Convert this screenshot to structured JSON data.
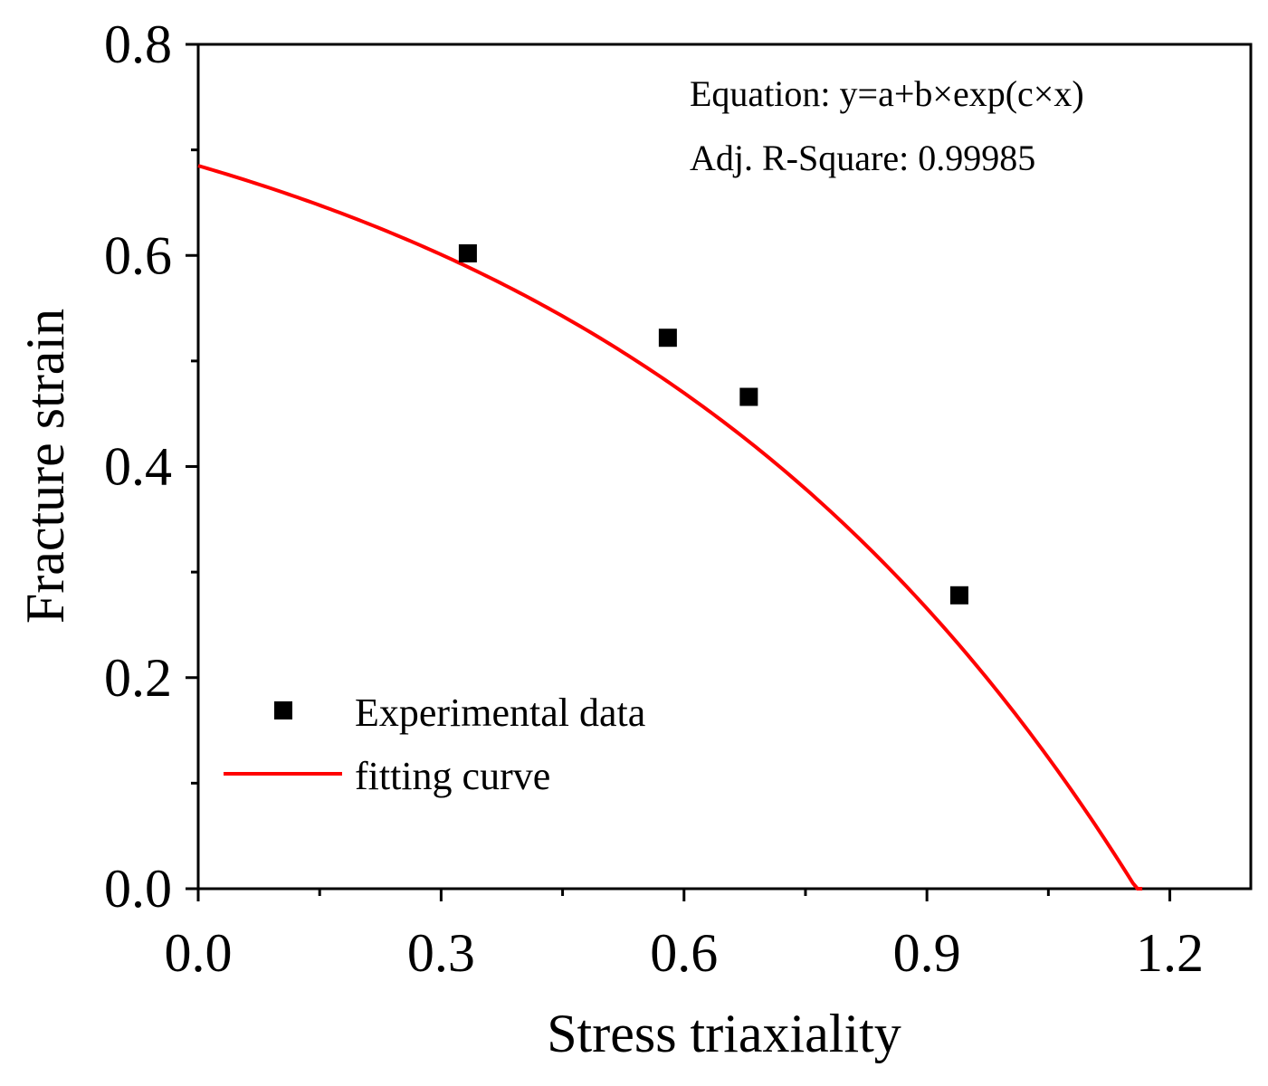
{
  "chart_data": {
    "type": "scatter",
    "xlabel": "Stress triaxiality",
    "ylabel": "Fracture strain",
    "xlim": [
      0.0,
      1.3
    ],
    "ylim": [
      0.0,
      0.8
    ],
    "x_ticks": [
      "0.0",
      "0.3",
      "0.6",
      "0.9",
      "1.2"
    ],
    "y_ticks": [
      "0.0",
      "0.2",
      "0.4",
      "0.6",
      "0.8"
    ],
    "x_tick_values": [
      0.0,
      0.3,
      0.6,
      0.9,
      1.2
    ],
    "y_tick_values": [
      0.0,
      0.2,
      0.4,
      0.6,
      0.8
    ],
    "series": [
      {
        "name": "Experimental data",
        "kind": "scatter",
        "color": "#000000",
        "marker": "square",
        "x": [
          0.333,
          0.58,
          0.68,
          0.94
        ],
        "y": [
          0.602,
          0.522,
          0.466,
          0.278
        ]
      },
      {
        "name": "fitting curve",
        "kind": "line",
        "color": "#ff0000",
        "fit": {
          "a": 0.836,
          "b": -0.151,
          "c": 1.477,
          "x_start": 0.0,
          "x_end": 1.166
        }
      }
    ],
    "annotations": [
      "Equation: y=a+b×exp(c×x)",
      "Adj. R-Square: 0.99985"
    ],
    "legend_position": "bottom-left"
  }
}
